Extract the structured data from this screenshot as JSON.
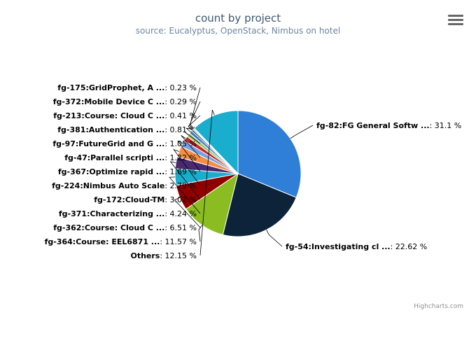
{
  "chart": {
    "title": "count by project",
    "subtitle": "source: Eucalyptus, OpenStack, Nimbus on hotel",
    "credits": "Highcharts.com",
    "menu_icon": "hamburger-menu-icon"
  },
  "chart_data": {
    "type": "pie",
    "title": "count by project",
    "subtitle": "source: Eucalyptus, OpenStack, Nimbus on hotel",
    "slices": [
      {
        "name": "fg-82:FG General Softw ...",
        "value": 31.1,
        "label": "31.1 %",
        "color": "#2f7ed8"
      },
      {
        "name": "fg-54:Investigating cl ...",
        "value": 22.62,
        "label": "22.62 %",
        "color": "#0d233a"
      },
      {
        "name": "fg-364:Course: EEL6871 ...",
        "value": 11.57,
        "label": "11.57 %",
        "color": "#8bbc21"
      },
      {
        "name": "fg-362:Course: Cloud C ...",
        "value": 6.51,
        "label": "6.51 %",
        "color": "#910000"
      },
      {
        "name": "fg-371:Characterizing ...",
        "value": 4.24,
        "label": "4.24 %",
        "color": "#1aadce"
      },
      {
        "name": "fg-172:Cloud-TM",
        "value": 3.02,
        "label": "3.02 %",
        "color": "#492970"
      },
      {
        "name": "fg-224:Nimbus Auto Scale",
        "value": 2.79,
        "label": "2.79 %",
        "color": "#f28f43"
      },
      {
        "name": "fg-367:Optimize rapid ...",
        "value": 1.69,
        "label": "1.69 %",
        "color": "#77a1e5"
      },
      {
        "name": "fg-47:Parallel scripti ...",
        "value": 1.22,
        "label": "1.22 %",
        "color": "#c42525"
      },
      {
        "name": "fg-97:FutureGrid and G ...",
        "value": 1.05,
        "label": "1.05 %",
        "color": "#a6c96a"
      },
      {
        "name": "fg-381:Authentication ...",
        "value": 0.81,
        "label": "0.81 %",
        "color": "#2f7ed8"
      },
      {
        "name": "fg-213:Course: Cloud C ...",
        "value": 0.41,
        "label": "0.41 %",
        "color": "#0d233a"
      },
      {
        "name": "fg-372:Mobile Device C ...",
        "value": 0.29,
        "label": "0.29 %",
        "color": "#8bbc21"
      },
      {
        "name": "fg-175:GridProphet, A ...",
        "value": 0.23,
        "label": "0.23 %",
        "color": "#910000"
      },
      {
        "name": "Others",
        "value": 12.15,
        "label": "12.15 %",
        "color": "#1aadce"
      }
    ]
  }
}
